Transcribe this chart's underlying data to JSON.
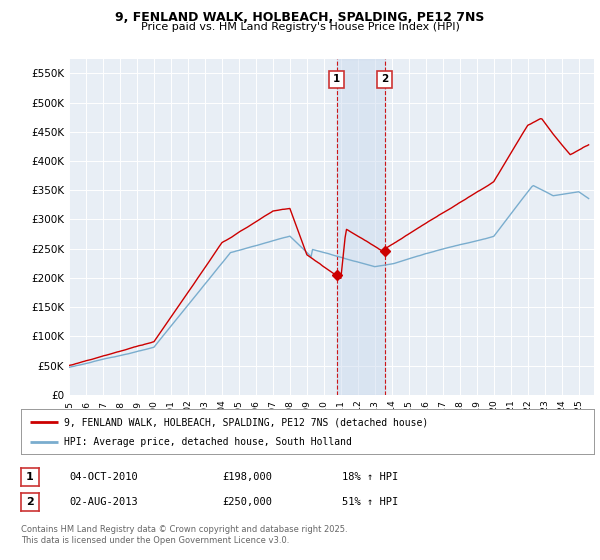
{
  "title_line1": "9, FENLAND WALK, HOLBEACH, SPALDING, PE12 7NS",
  "title_line2": "Price paid vs. HM Land Registry's House Price Index (HPI)",
  "background_color": "#ffffff",
  "plot_bg_color": "#e8eef5",
  "grid_color": "#ffffff",
  "red_line_color": "#cc0000",
  "blue_line_color": "#7aadce",
  "vline_color": "#cc0000",
  "span_color": "#c8d8ee",
  "marker1_x": 2010.75,
  "marker2_x": 2013.58,
  "legend_entry1": "9, FENLAND WALK, HOLBEACH, SPALDING, PE12 7NS (detached house)",
  "legend_entry2": "HPI: Average price, detached house, South Holland",
  "footer": "Contains HM Land Registry data © Crown copyright and database right 2025.\nThis data is licensed under the Open Government Licence v3.0.",
  "ylim": [
    0,
    575000
  ],
  "yticks": [
    0,
    50000,
    100000,
    150000,
    200000,
    250000,
    300000,
    350000,
    400000,
    450000,
    500000,
    550000
  ],
  "ytick_labels": [
    "£0",
    "£50K",
    "£100K",
    "£150K",
    "£200K",
    "£250K",
    "£300K",
    "£350K",
    "£400K",
    "£450K",
    "£500K",
    "£550K"
  ],
  "xmin": 1995,
  "xmax": 2025.9
}
